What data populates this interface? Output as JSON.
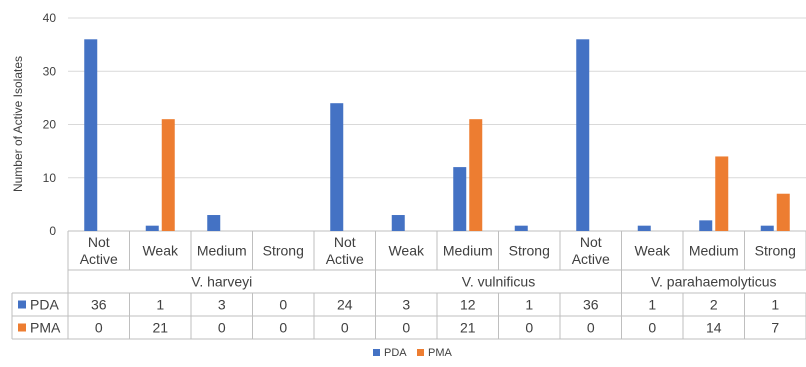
{
  "chart_data": {
    "type": "bar",
    "ylabel": "Number of Active Isolates",
    "ylim": [
      0,
      40
    ],
    "yticks": [
      0,
      10,
      20,
      30,
      40
    ],
    "grid": true,
    "legend_position": "bottom",
    "groups": [
      "V. harveyi",
      "V. vulnificus",
      "V. parahaemolyticus"
    ],
    "categories": [
      {
        "label_lines": [
          "Not",
          "Active"
        ],
        "group": 0
      },
      {
        "label_lines": [
          "Weak"
        ],
        "group": 0
      },
      {
        "label_lines": [
          "Medium"
        ],
        "group": 0
      },
      {
        "label_lines": [
          "Strong"
        ],
        "group": 0
      },
      {
        "label_lines": [
          "Not",
          "Active"
        ],
        "group": 0
      },
      {
        "label_lines": [
          "Weak"
        ],
        "group": 1
      },
      {
        "label_lines": [
          "Medium"
        ],
        "group": 1
      },
      {
        "label_lines": [
          "Strong"
        ],
        "group": 1
      },
      {
        "label_lines": [
          "Not",
          "Active"
        ],
        "group": 1
      },
      {
        "label_lines": [
          "Weak"
        ],
        "group": 2
      },
      {
        "label_lines": [
          "Medium"
        ],
        "group": 2
      },
      {
        "label_lines": [
          "Strong"
        ],
        "group": 2
      }
    ],
    "series": [
      {
        "name": "PDA",
        "color": "#4472C4",
        "values": [
          36,
          1,
          3,
          0,
          24,
          3,
          12,
          1,
          36,
          1,
          2,
          1
        ]
      },
      {
        "name": "PMA",
        "color": "#ED7D31",
        "values": [
          0,
          21,
          0,
          0,
          0,
          0,
          21,
          0,
          0,
          0,
          14,
          7
        ]
      }
    ]
  }
}
